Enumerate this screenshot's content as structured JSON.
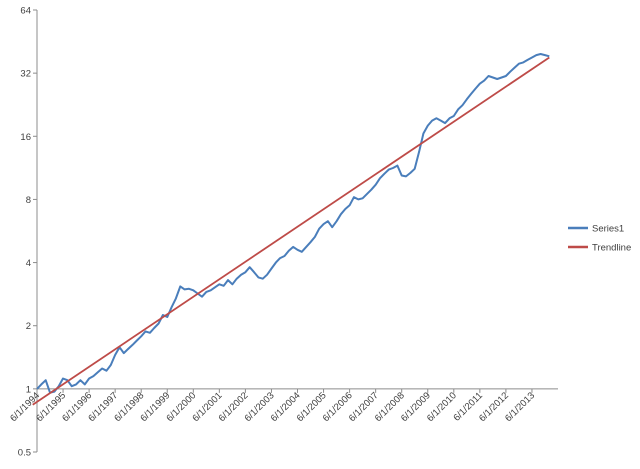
{
  "chart_data": {
    "type": "line",
    "y_scale": "log2",
    "ylim": [
      0.5,
      64
    ],
    "y_ticks": [
      "0.5",
      "1",
      "2",
      "4",
      "8",
      "16",
      "32",
      "64"
    ],
    "x_tick_labels": [
      "6/1/1994",
      "6/1/1995",
      "6/1/1996",
      "6/1/1997",
      "6/1/1998",
      "6/1/1999",
      "6/1/2000",
      "6/1/2001",
      "6/1/2002",
      "6/1/2003",
      "6/1/2004",
      "6/1/2005",
      "6/1/2006",
      "6/1/2007",
      "6/1/2008",
      "6/1/2009",
      "6/1/2010",
      "6/1/2011",
      "6/1/2012",
      "6/1/2013"
    ],
    "xlim": [
      "1994-06",
      "2014-06"
    ],
    "grid": false,
    "legend_position": "right",
    "series": [
      {
        "name": "Series1",
        "color": "#4a7ebb",
        "points": [
          [
            "1994-06",
            1.0
          ],
          [
            "1994-08",
            1.05
          ],
          [
            "1994-10",
            1.1
          ],
          [
            "1994-12",
            0.96
          ],
          [
            "1995-02",
            0.97
          ],
          [
            "1995-04",
            1.03
          ],
          [
            "1995-06",
            1.12
          ],
          [
            "1995-08",
            1.1
          ],
          [
            "1995-10",
            1.03
          ],
          [
            "1995-12",
            1.05
          ],
          [
            "1996-02",
            1.1
          ],
          [
            "1996-04",
            1.05
          ],
          [
            "1996-06",
            1.12
          ],
          [
            "1996-08",
            1.15
          ],
          [
            "1996-10",
            1.2
          ],
          [
            "1996-12",
            1.25
          ],
          [
            "1997-02",
            1.22
          ],
          [
            "1997-04",
            1.3
          ],
          [
            "1997-06",
            1.45
          ],
          [
            "1997-08",
            1.58
          ],
          [
            "1997-10",
            1.48
          ],
          [
            "1997-12",
            1.55
          ],
          [
            "1998-02",
            1.62
          ],
          [
            "1998-04",
            1.7
          ],
          [
            "1998-06",
            1.78
          ],
          [
            "1998-08",
            1.88
          ],
          [
            "1998-10",
            1.85
          ],
          [
            "1998-12",
            1.95
          ],
          [
            "1999-02",
            2.05
          ],
          [
            "1999-04",
            2.25
          ],
          [
            "1999-06",
            2.2
          ],
          [
            "1999-08",
            2.45
          ],
          [
            "1999-10",
            2.7
          ],
          [
            "1999-12",
            3.08
          ],
          [
            "2000-02",
            2.98
          ],
          [
            "2000-04",
            3.0
          ],
          [
            "2000-06",
            2.95
          ],
          [
            "2000-08",
            2.85
          ],
          [
            "2000-10",
            2.75
          ],
          [
            "2000-12",
            2.9
          ],
          [
            "2001-02",
            2.95
          ],
          [
            "2001-04",
            3.05
          ],
          [
            "2001-06",
            3.15
          ],
          [
            "2001-08",
            3.1
          ],
          [
            "2001-10",
            3.3
          ],
          [
            "2001-12",
            3.15
          ],
          [
            "2002-02",
            3.35
          ],
          [
            "2002-04",
            3.5
          ],
          [
            "2002-06",
            3.6
          ],
          [
            "2002-08",
            3.8
          ],
          [
            "2002-10",
            3.6
          ],
          [
            "2002-12",
            3.4
          ],
          [
            "2003-02",
            3.35
          ],
          [
            "2003-04",
            3.5
          ],
          [
            "2003-06",
            3.75
          ],
          [
            "2003-08",
            4.0
          ],
          [
            "2003-10",
            4.2
          ],
          [
            "2003-12",
            4.3
          ],
          [
            "2004-02",
            4.55
          ],
          [
            "2004-04",
            4.75
          ],
          [
            "2004-06",
            4.6
          ],
          [
            "2004-08",
            4.5
          ],
          [
            "2004-10",
            4.75
          ],
          [
            "2004-12",
            5.0
          ],
          [
            "2005-02",
            5.3
          ],
          [
            "2005-04",
            5.8
          ],
          [
            "2005-06",
            6.1
          ],
          [
            "2005-08",
            6.3
          ],
          [
            "2005-10",
            5.9
          ],
          [
            "2005-12",
            6.3
          ],
          [
            "2006-02",
            6.8
          ],
          [
            "2006-04",
            7.2
          ],
          [
            "2006-06",
            7.5
          ],
          [
            "2006-08",
            8.2
          ],
          [
            "2006-10",
            8.0
          ],
          [
            "2006-12",
            8.1
          ],
          [
            "2007-02",
            8.5
          ],
          [
            "2007-04",
            8.9
          ],
          [
            "2007-06",
            9.4
          ],
          [
            "2007-08",
            10.1
          ],
          [
            "2007-10",
            10.6
          ],
          [
            "2007-12",
            11.1
          ],
          [
            "2008-02",
            11.3
          ],
          [
            "2008-04",
            11.6
          ],
          [
            "2008-06",
            10.4
          ],
          [
            "2008-08",
            10.3
          ],
          [
            "2008-10",
            10.7
          ],
          [
            "2008-12",
            11.2
          ],
          [
            "2009-02",
            13.5
          ],
          [
            "2009-04",
            16.5
          ],
          [
            "2009-06",
            18.0
          ],
          [
            "2009-08",
            19.0
          ],
          [
            "2009-10",
            19.5
          ],
          [
            "2009-12",
            19.0
          ],
          [
            "2010-02",
            18.5
          ],
          [
            "2010-04",
            19.5
          ],
          [
            "2010-06",
            20.0
          ],
          [
            "2010-08",
            21.5
          ],
          [
            "2010-10",
            22.5
          ],
          [
            "2010-12",
            24.0
          ],
          [
            "2011-02",
            25.5
          ],
          [
            "2011-04",
            27.0
          ],
          [
            "2011-06",
            28.5
          ],
          [
            "2011-08",
            29.5
          ],
          [
            "2011-10",
            31.0
          ],
          [
            "2011-12",
            30.5
          ],
          [
            "2012-02",
            30.0
          ],
          [
            "2012-04",
            30.5
          ],
          [
            "2012-06",
            31.0
          ],
          [
            "2012-08",
            32.5
          ],
          [
            "2012-10",
            34.0
          ],
          [
            "2012-12",
            35.5
          ],
          [
            "2013-02",
            36.0
          ],
          [
            "2013-04",
            37.0
          ],
          [
            "2013-06",
            38.0
          ],
          [
            "2013-08",
            39.0
          ],
          [
            "2013-10",
            39.5
          ],
          [
            "2013-12",
            39.0
          ],
          [
            "2014-02",
            38.5
          ]
        ]
      },
      {
        "name": "Trendline",
        "color": "#be4b48",
        "points": [
          [
            "1994-04",
            0.84
          ],
          [
            "2014-02",
            38.0
          ]
        ]
      }
    ]
  }
}
